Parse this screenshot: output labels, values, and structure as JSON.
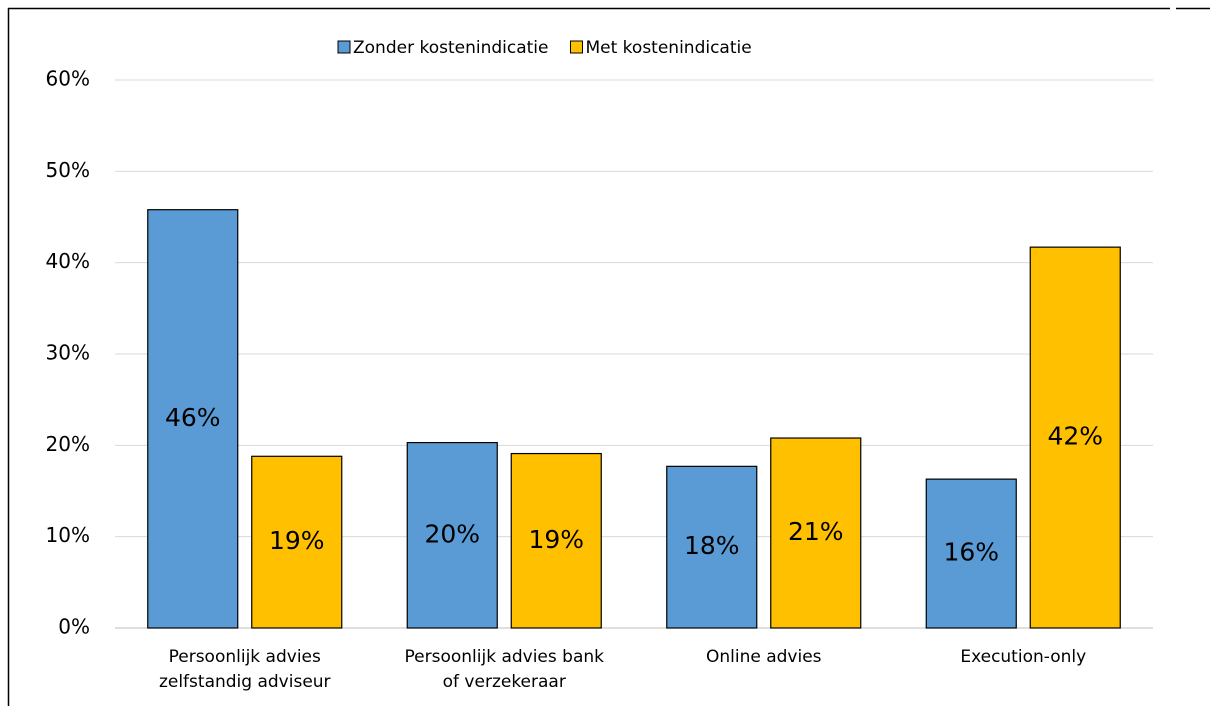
{
  "chart_data": {
    "type": "bar",
    "categories": [
      [
        "Persoonlijk advies",
        "zelfstandig adviseur"
      ],
      [
        "Persoonlijk advies bank",
        "of verzekeraar"
      ],
      [
        "Online advies"
      ],
      [
        "Execution-only"
      ]
    ],
    "series": [
      {
        "name": "Zonder kostenindicatie",
        "color": "#5b9bd5",
        "values": [
          45.8,
          20.3,
          17.7,
          16.3
        ],
        "value_labels": [
          "46%",
          "20%",
          "18%",
          "16%"
        ]
      },
      {
        "name": "Met kostenindicatie",
        "color": "#ffc000",
        "values": [
          18.8,
          19.1,
          20.8,
          41.7
        ],
        "value_labels": [
          "19%",
          "19%",
          "21%",
          "42%"
        ]
      }
    ],
    "ylim": [
      0,
      60
    ],
    "yticks": [
      {
        "value": 0,
        "label": "0%"
      },
      {
        "value": 10,
        "label": "10%"
      },
      {
        "value": 20,
        "label": "20%"
      },
      {
        "value": 30,
        "label": "30%"
      },
      {
        "value": 40,
        "label": "40%"
      },
      {
        "value": 50,
        "label": "50%"
      },
      {
        "value": 60,
        "label": "60%"
      }
    ],
    "grid": true,
    "legend": "top"
  }
}
